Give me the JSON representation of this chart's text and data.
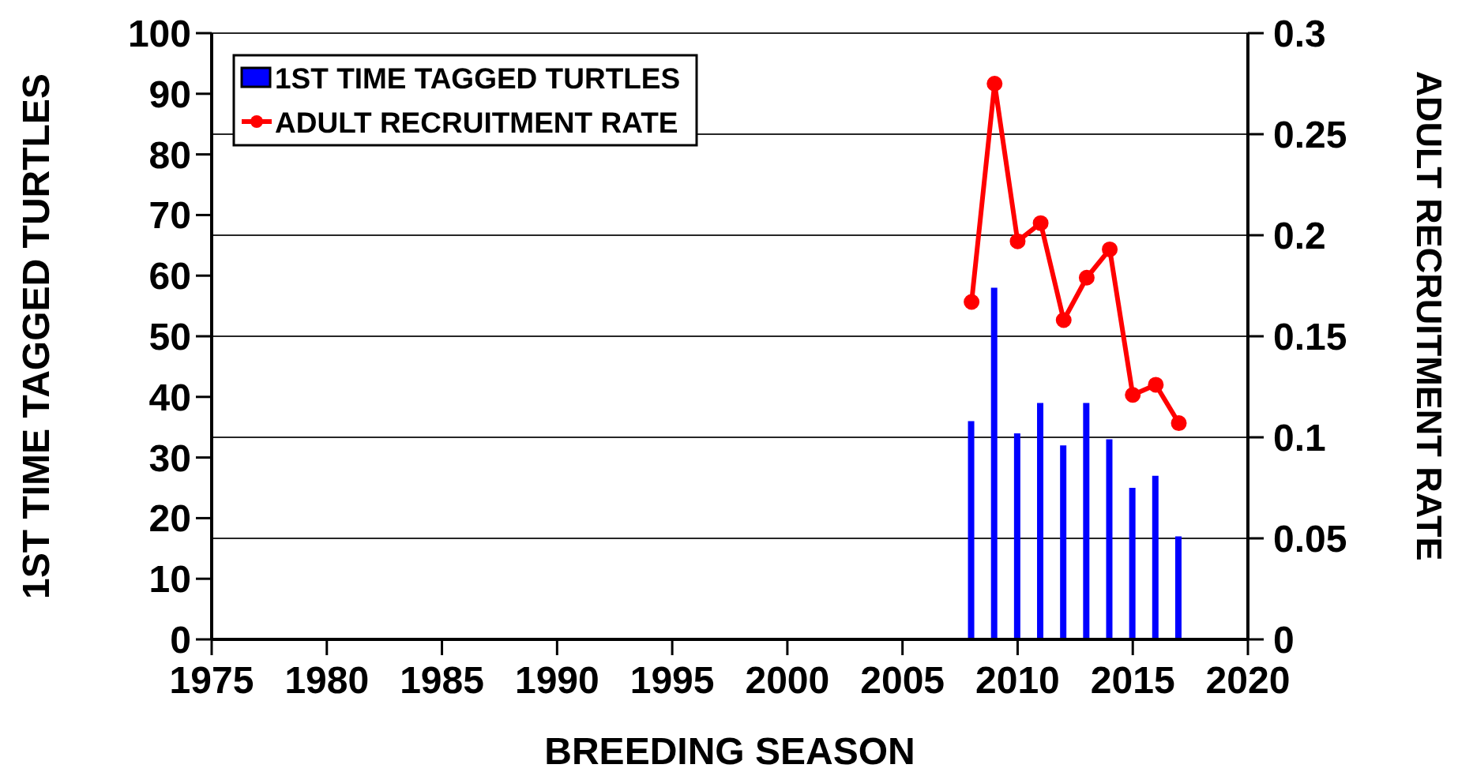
{
  "chart_data": {
    "type": "bar",
    "xlabel": "BREEDING SEASON",
    "ylabel": "1ST TIME TAGGED TURTLES",
    "y2label": "ADULT RECRUITMENT RATE",
    "x": [
      2008,
      2009,
      2010,
      2011,
      2012,
      2013,
      2014,
      2015,
      2016,
      2017
    ],
    "series": [
      {
        "name": "1ST TIME TAGGED TURTLES",
        "color": "#0000ff",
        "values": [
          36,
          58,
          34,
          39,
          32,
          39,
          33,
          25,
          27,
          17
        ]
      },
      {
        "name": "ADULT RECRUITMENT RATE",
        "type": "line",
        "axis": "y2",
        "color": "#ff0000",
        "values": [
          0.167,
          0.275,
          0.197,
          0.206,
          0.158,
          0.179,
          0.193,
          0.121,
          0.126,
          0.107
        ]
      }
    ],
    "xlim": [
      1975,
      2020
    ],
    "xticks": [
      1975,
      1980,
      1985,
      1990,
      1995,
      2000,
      2005,
      2010,
      2015,
      2020
    ],
    "ylim": [
      0,
      100
    ],
    "yticks": [
      0,
      10,
      20,
      30,
      40,
      50,
      60,
      70,
      80,
      90,
      100
    ],
    "y2lim": [
      0,
      0.3
    ],
    "y2ticks": [
      0,
      0.05,
      0.1,
      0.15,
      0.2,
      0.25,
      0.3
    ],
    "grid": "y2",
    "legend": "top left",
    "marker": "circle",
    "line_style": "solid"
  }
}
